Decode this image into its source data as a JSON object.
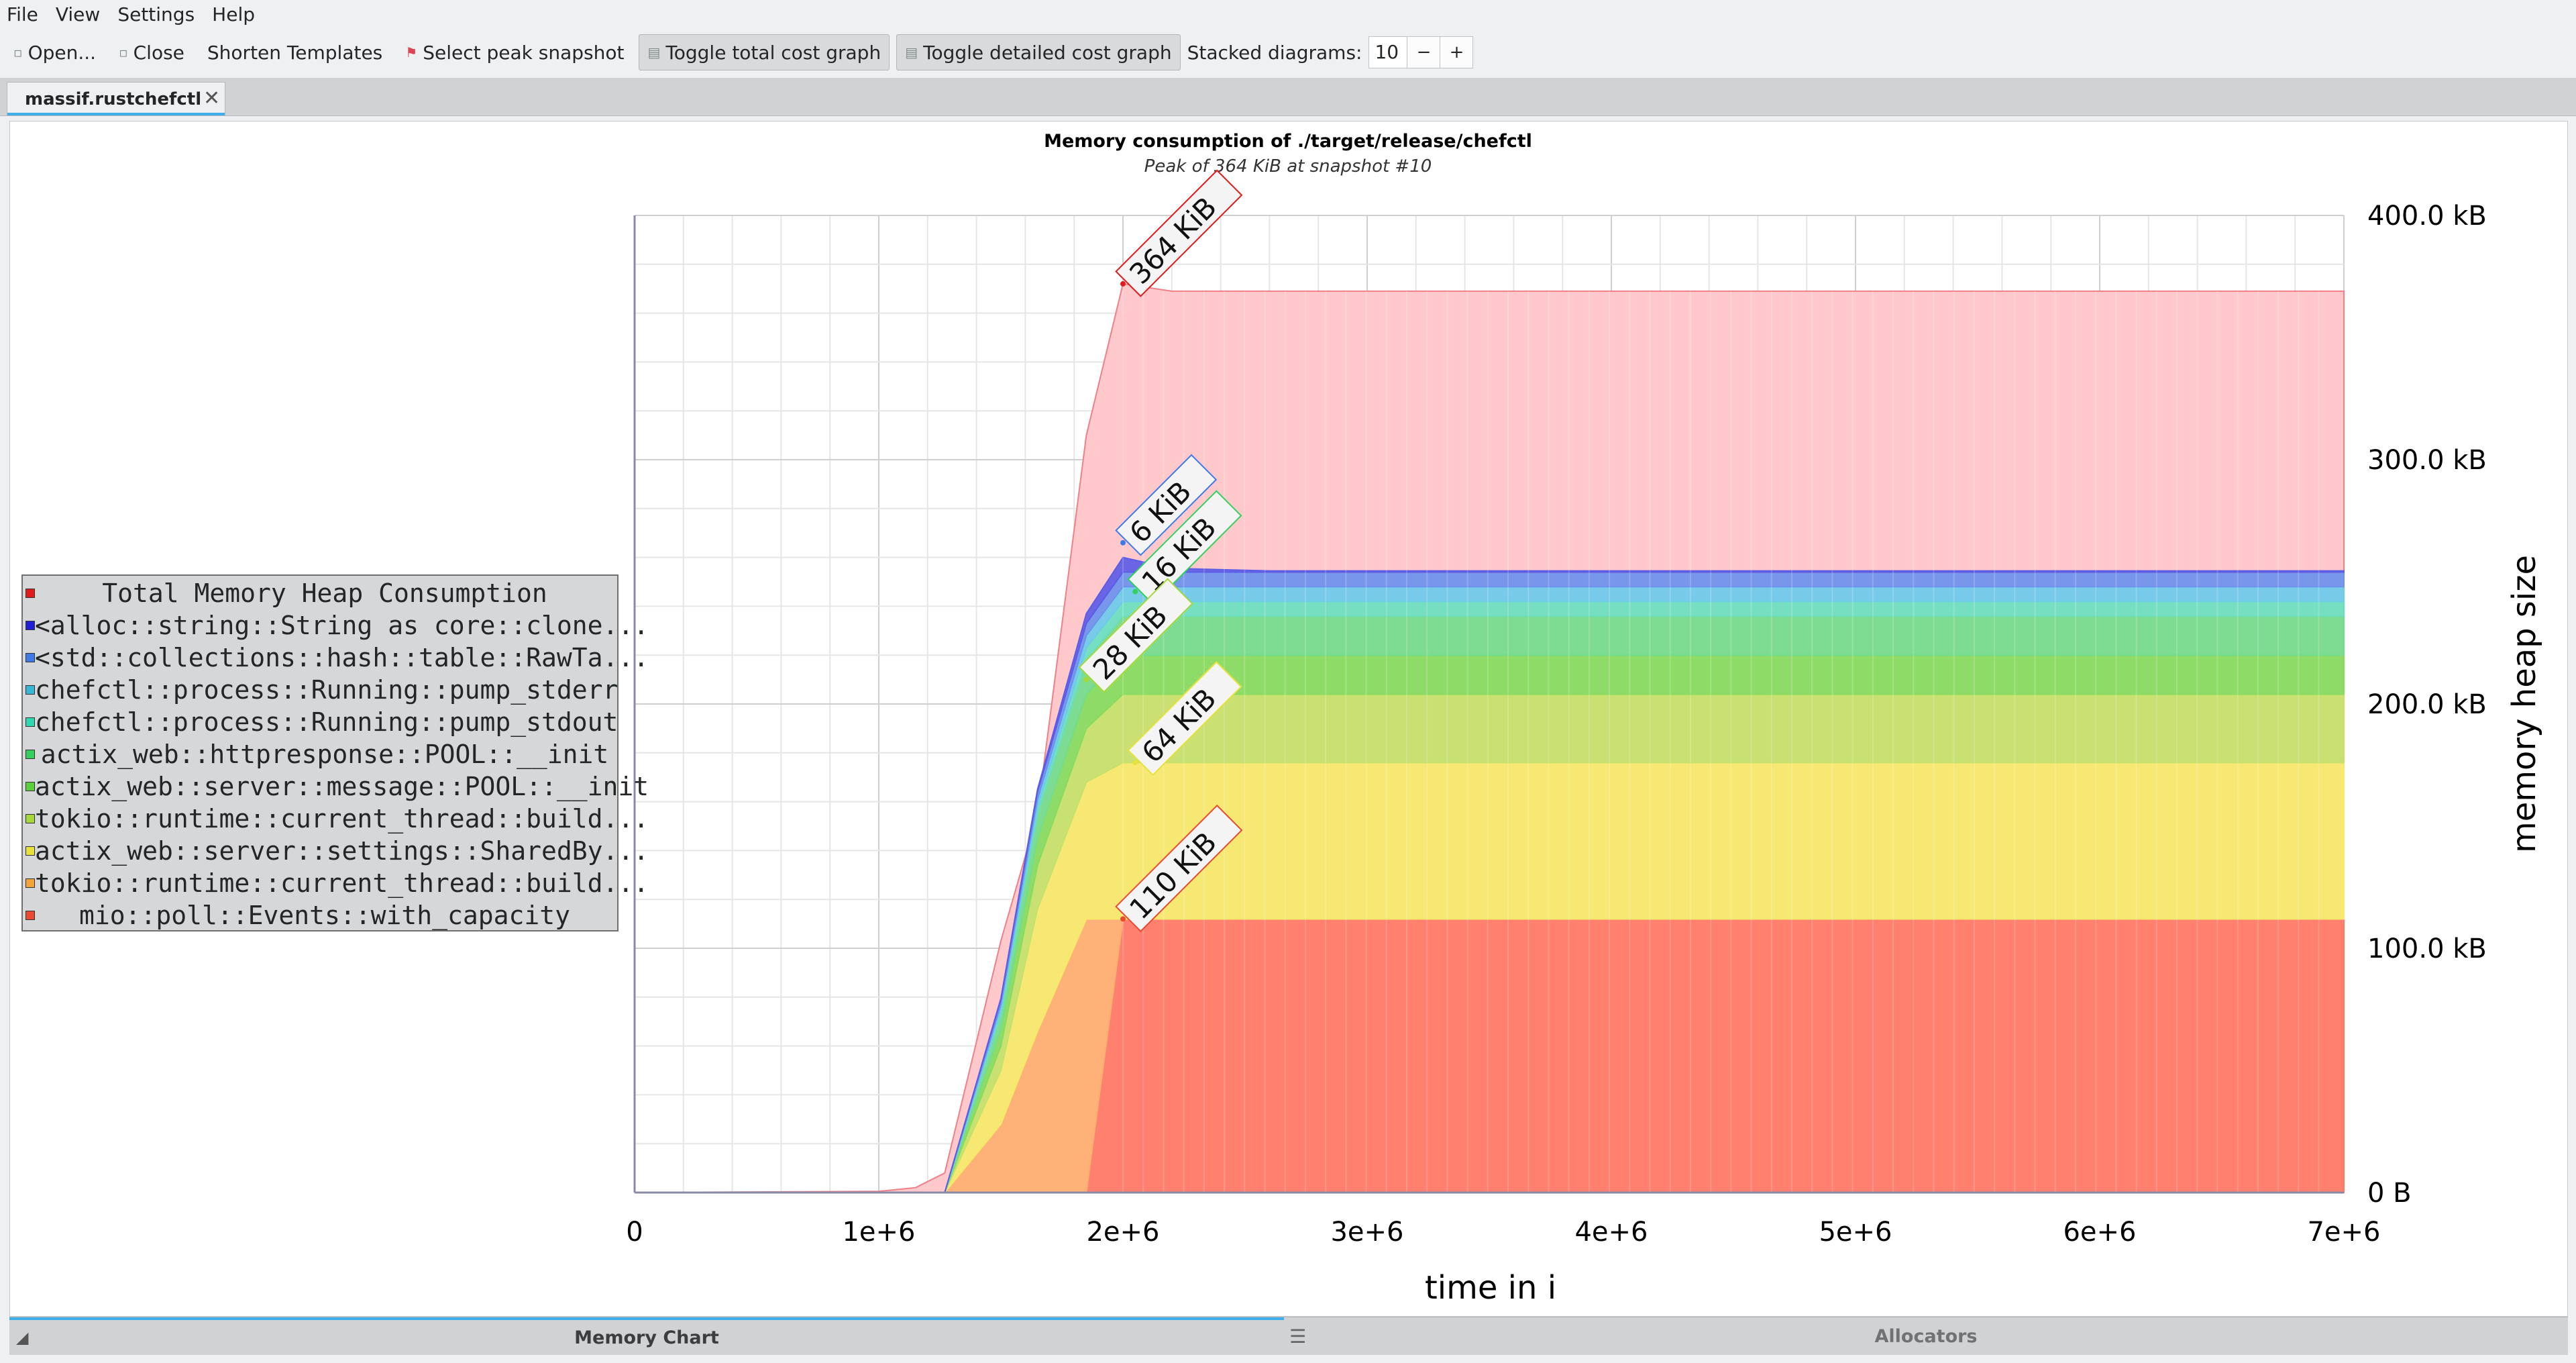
{
  "menu": [
    "File",
    "View",
    "Settings",
    "Help"
  ],
  "toolbar": {
    "open": "Open...",
    "close": "Close",
    "shorten_templates": "Shorten Templates",
    "select_peak": "Select peak snapshot",
    "toggle_total": "Toggle total cost graph",
    "toggle_detailed": "Toggle detailed cost graph",
    "stacked_label": "Stacked diagrams:",
    "stacked_value": "10",
    "minus": "−",
    "plus": "+"
  },
  "tab": {
    "label": "massif.rustchefctl",
    "close": "✕"
  },
  "view_tabs": {
    "memory_chart": "Memory Chart",
    "allocators": "Allocators"
  },
  "chart_data": {
    "type": "area",
    "title": "Memory consumption of ./target/release/chefctl",
    "subtitle": "Peak of 364 KiB at snapshot #10",
    "xlabel": "time in i",
    "ylabel": "memory heap size",
    "xlim": [
      0,
      7000000
    ],
    "ylim": [
      0,
      400
    ],
    "x_ticks": [
      "0",
      "1e+6",
      "2e+6",
      "3e+6",
      "4e+6",
      "5e+6",
      "6e+6",
      "7e+6"
    ],
    "y_ticks": [
      "0 B",
      "100.0 kB",
      "200.0 kB",
      "300.0 kB",
      "400.0 kB"
    ],
    "grid": true,
    "legend_position": "left",
    "legend": [
      {
        "label": "Total Memory Heap Consumption",
        "color": "#e31a1c"
      },
      {
        "label": "<alloc::string::String as core::clone...",
        "color": "#1f1fd6"
      },
      {
        "label": "<std::collections::hash::table::RawTa...",
        "color": "#3e7be8"
      },
      {
        "label": "chefctl::process::Running::pump_stderr",
        "color": "#36b7d8"
      },
      {
        "label": "chefctl::process::Running::pump_stdout",
        "color": "#2ed8b0"
      },
      {
        "label": "actix_web::httpresponse::POOL::__init",
        "color": "#34cf5e"
      },
      {
        "label": "actix_web::server::message::POOL::__init",
        "color": "#5ad13a"
      },
      {
        "label": "tokio::runtime::current_thread::build...",
        "color": "#a6d83a"
      },
      {
        "label": "actix_web::server::settings::SharedBy...",
        "color": "#e6e23a"
      },
      {
        "label": "tokio::runtime::current_thread::build...",
        "color": "#f4a33a"
      },
      {
        "label": "mio::poll::Events::with_capacity",
        "color": "#ea4b2e"
      }
    ],
    "x": [
      0,
      1000000,
      1150000,
      1270000,
      1500000,
      1650000,
      1850000,
      2000000,
      2200000,
      2600000,
      7000000
    ],
    "total": [
      0,
      0.5,
      2,
      8,
      103,
      155,
      310,
      372,
      369,
      369,
      369
    ],
    "series": [
      {
        "name": "mio::poll::Events::with_capacity",
        "color": "#ff7a66",
        "values": [
          0,
          0,
          0,
          0,
          0,
          0,
          0,
          112,
          112,
          112,
          112
        ]
      },
      {
        "name": "tokio::runtime::current_thread::build...",
        "color": "#ffb070",
        "values": [
          0,
          0,
          0,
          0,
          28,
          66,
          112,
          0,
          0,
          0,
          0
        ]
      },
      {
        "name": "actix_web::server::settings::SharedBy...",
        "color": "#f5ea6a",
        "values": [
          0,
          0,
          0,
          0,
          22,
          50,
          56,
          64,
          64,
          64,
          64
        ]
      },
      {
        "name": "tokio::runtime::current_thread::build...",
        "color": "#c4e26a",
        "values": [
          0,
          0,
          0,
          0,
          10,
          18,
          22,
          28,
          28,
          28,
          28
        ]
      },
      {
        "name": "actix_web::server::message::POOL::__init",
        "color": "#86dc5e",
        "values": [
          0,
          0,
          0,
          0,
          7,
          11,
          14,
          16,
          16,
          16,
          16
        ]
      },
      {
        "name": "actix_web::httpresponse::POOL::__init",
        "color": "#72dd8c",
        "values": [
          0,
          0,
          0,
          0,
          6,
          10,
          14,
          16,
          16,
          16,
          16
        ]
      },
      {
        "name": "chefctl::process::Running::pump_stdout",
        "color": "#6adfc0",
        "values": [
          0,
          0,
          0,
          0,
          2,
          3,
          5,
          6,
          6,
          6,
          6
        ]
      },
      {
        "name": "chefctl::process::Running::pump_stderr",
        "color": "#6ccbea",
        "values": [
          0,
          0,
          0,
          0,
          2,
          3,
          5,
          6,
          6,
          6,
          6
        ]
      },
      {
        "name": "<std::collections::hash::table::RawTa...",
        "color": "#6c92ee",
        "values": [
          0,
          0,
          0,
          0,
          2,
          3,
          5,
          6,
          6,
          6,
          6
        ]
      },
      {
        "name": "<alloc::string::String as core::clone...",
        "color": "#5c5ce6",
        "values": [
          0,
          0,
          0,
          0,
          0.5,
          1,
          4,
          6,
          1.5,
          0.5,
          0.5
        ]
      }
    ],
    "annotations": [
      {
        "text": "364 KiB",
        "x": 2000000,
        "y": 372,
        "color": "#e31a1c"
      },
      {
        "text": "6 KiB",
        "x": 2000000,
        "y": 266,
        "color": "#3e7be8"
      },
      {
        "text": "16 KiB",
        "x": 2050000,
        "y": 246,
        "color": "#34cf5e"
      },
      {
        "text": "28 KiB",
        "x": 1850000,
        "y": 210,
        "color": "#a6d83a"
      },
      {
        "text": "64 KiB",
        "x": 2050000,
        "y": 176,
        "color": "#e6e23a"
      },
      {
        "text": "110 KiB",
        "x": 2000000,
        "y": 112,
        "color": "#ea4b2e"
      }
    ]
  }
}
